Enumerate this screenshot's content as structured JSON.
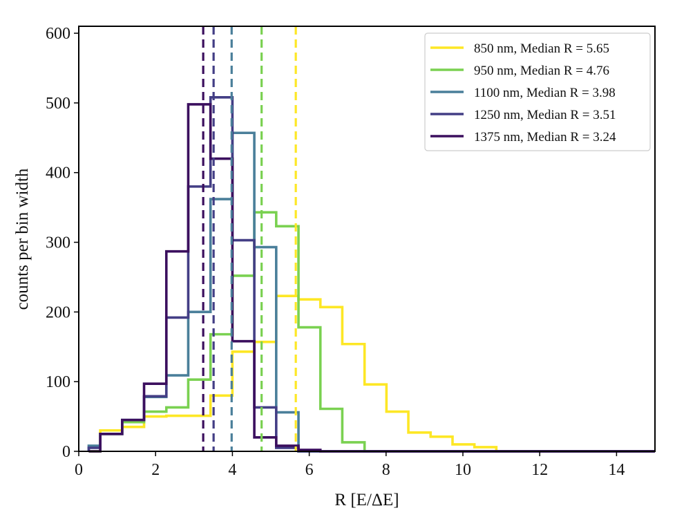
{
  "chart_data": {
    "type": "histogram",
    "title": "",
    "xlabel": "R [E/ΔE]",
    "ylabel": "counts per bin width",
    "xlim": [
      0,
      15
    ],
    "ylim": [
      0,
      610
    ],
    "xticks": [
      0,
      2,
      4,
      6,
      8,
      10,
      12,
      14
    ],
    "xtick_labels": [
      "0",
      "2",
      "4",
      "6",
      "8",
      "10",
      "12",
      "14"
    ],
    "yticks": [
      0,
      100,
      200,
      300,
      400,
      500,
      600
    ],
    "ytick_labels": [
      "0",
      "100",
      "200",
      "300",
      "400",
      "500",
      "600"
    ],
    "grid": false,
    "legend_position": "top-right",
    "bin_edges": [
      0.26,
      0.56,
      1.13,
      1.7,
      2.28,
      2.85,
      3.43,
      4.0,
      4.57,
      5.14,
      5.72,
      6.29,
      6.86,
      7.44,
      8.01,
      8.58,
      9.16,
      9.73,
      10.3,
      10.87,
      15.0
    ],
    "series": [
      {
        "name": "850 nm, Median R = 5.65",
        "color": "#fde725",
        "median": 5.65,
        "values": [
          0,
          30,
          35,
          50,
          51,
          51,
          80,
          143,
          157,
          223,
          218,
          207,
          154,
          96,
          57,
          27,
          21,
          10,
          6,
          0
        ]
      },
      {
        "name": "950 nm, Median R = 4.76",
        "color": "#7ad151",
        "median": 4.76,
        "values": [
          0,
          25,
          42,
          57,
          63,
          103,
          168,
          252,
          343,
          323,
          178,
          61,
          13,
          0,
          0,
          0,
          0,
          0,
          0,
          0
        ]
      },
      {
        "name": "1100 nm, Median R = 3.98",
        "color": "#4a7f9a",
        "median": 3.98,
        "values": [
          8,
          25,
          45,
          78,
          109,
          200,
          362,
          457,
          293,
          56,
          0,
          0,
          0,
          0,
          0,
          0,
          0,
          0,
          0,
          0
        ]
      },
      {
        "name": "1250 nm, Median R = 3.51",
        "color": "#433e85",
        "median": 3.51,
        "values": [
          5,
          25,
          45,
          79,
          192,
          380,
          508,
          303,
          63,
          5,
          0,
          0,
          0,
          0,
          0,
          0,
          0,
          0,
          0,
          0
        ]
      },
      {
        "name": "1375 nm, Median R = 3.24",
        "color": "#3b0f5e",
        "median": 3.24,
        "values": [
          0,
          25,
          45,
          97,
          287,
          498,
          420,
          158,
          20,
          8,
          2,
          0,
          0,
          0,
          0,
          0,
          0,
          0,
          0,
          0
        ]
      }
    ]
  }
}
